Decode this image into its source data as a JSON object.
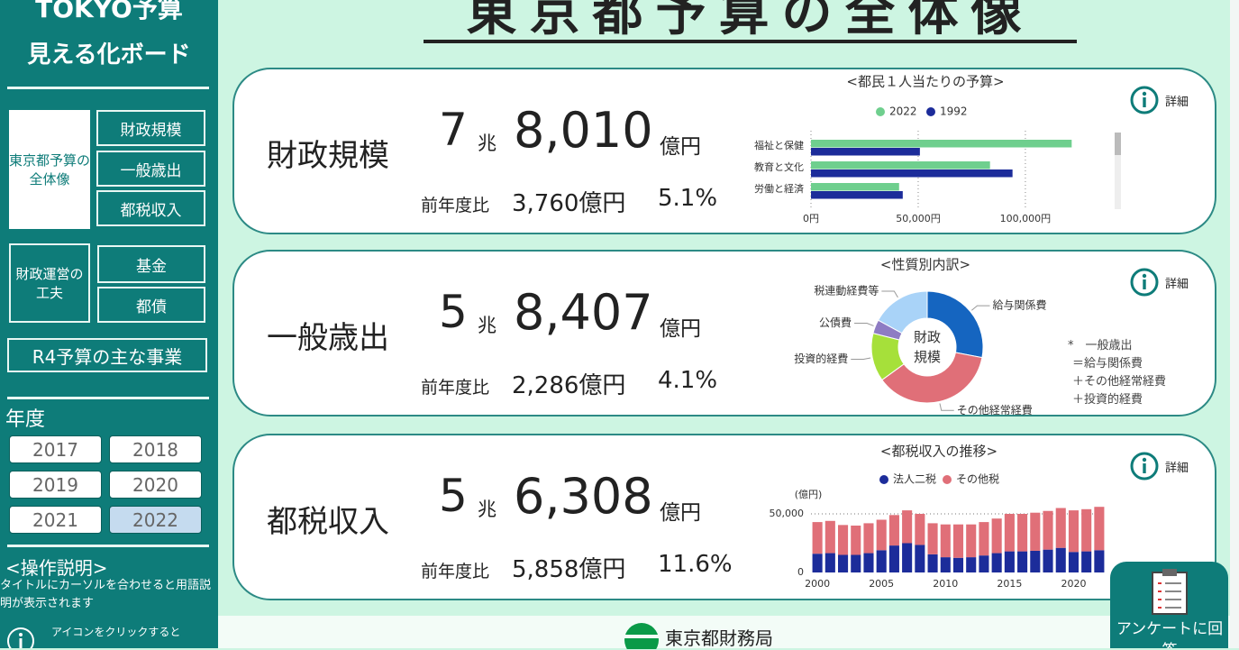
{
  "sidebar": {
    "title": "TOKYO予算",
    "subtitle": "見える化ボード",
    "nav": [
      {
        "label": "東京都予算の全体像",
        "items": [
          "財政規模",
          "一般歳出",
          "都税収入"
        ]
      },
      {
        "label": "財政運営の工夫",
        "items": [
          "基金",
          "都債"
        ]
      }
    ],
    "feature_button": "R4予算の主な事業",
    "year_label": "年度",
    "years": [
      "2017",
      "2018",
      "2019",
      "2020",
      "2021",
      "2022"
    ],
    "selected_year": "2022",
    "help_title": "<操作説明>",
    "help_text": "タイトルにカーソルを合わせると用語説明が表示されます",
    "icon_help": "アイコンをクリックすると"
  },
  "header": {
    "title": "東京都予算の全体像"
  },
  "cards": [
    {
      "label": "財政規模",
      "trillion": "7",
      "trillion_unit": "兆",
      "hundred_million": "8,010",
      "unit": "億円",
      "comparison_label": "前年度比",
      "change": "3,760億円",
      "change_pct": "5.1%",
      "detail": "詳細"
    },
    {
      "label": "一般歳出",
      "trillion": "5",
      "trillion_unit": "兆",
      "hundred_million": "8,407",
      "unit": "億円",
      "comparison_label": "前年度比",
      "change": "2,286億円",
      "change_pct": "4.1%",
      "detail": "詳細"
    },
    {
      "label": "都税収入",
      "trillion": "5",
      "trillion_unit": "兆",
      "hundred_million": "6,308",
      "unit": "億円",
      "comparison_label": "前年度比",
      "change": "5,858億円",
      "change_pct": "11.6%",
      "detail": "詳細"
    }
  ],
  "chart_data": [
    {
      "type": "bar",
      "orientation": "horizontal",
      "title": "<都民１人当たりの予算>",
      "categories": [
        "福祉と保健",
        "教育と文化",
        "労働と経済"
      ],
      "series": [
        {
          "name": "2022",
          "color": "#6fcf8e",
          "values": [
            121600,
            83500,
            41100
          ]
        },
        {
          "name": "1992",
          "color": "#1c2c9a",
          "values": [
            50800,
            94000,
            42800
          ]
        }
      ],
      "xlim": [
        0,
        145000
      ],
      "xticks": [
        {
          "value": 0,
          "label": "0円"
        },
        {
          "value": 50000,
          "label": "50,000円"
        },
        {
          "value": 100000,
          "label": "100,000円"
        }
      ],
      "grid": true
    },
    {
      "type": "donut",
      "title": "<性質別内訳>",
      "center_label": "財政規模",
      "categories": [
        "給与関係費",
        "その他経常経費",
        "投資的経費",
        "公債費",
        "税連動経費等"
      ],
      "values": [
        28,
        37,
        14,
        4,
        17
      ],
      "colors": [
        "#1565c0",
        "#e06f78",
        "#a6e03a",
        "#8e7cc3",
        "#a9d3f8"
      ],
      "note": [
        "*　一般歳出",
        "＝給与関係費",
        "＋その他経常経費",
        "＋投資的経費"
      ]
    },
    {
      "type": "bar",
      "stacked": true,
      "title": "<都税収入の推移>",
      "y_label": "(億円)",
      "x": [
        2000,
        2001,
        2002,
        2003,
        2004,
        2005,
        2006,
        2007,
        2008,
        2009,
        2010,
        2011,
        2012,
        2013,
        2014,
        2015,
        2016,
        2017,
        2018,
        2019,
        2020,
        2021,
        2022
      ],
      "series": [
        {
          "name": "法人二税",
          "color": "#1c2c9a",
          "values": [
            16000,
            16500,
            15000,
            15000,
            16500,
            19000,
            23000,
            25000,
            23500,
            15500,
            13000,
            12500,
            13000,
            14500,
            16500,
            18000,
            18000,
            18500,
            19500,
            21000,
            17500,
            18000,
            19000
          ]
        },
        {
          "name": "その他税",
          "color": "#e06f78",
          "values": [
            27000,
            27500,
            25500,
            25000,
            25500,
            26000,
            26000,
            28000,
            26500,
            26500,
            28000,
            28500,
            28000,
            28500,
            29500,
            32000,
            32000,
            32500,
            33000,
            34000,
            35500,
            36000,
            37000
          ]
        }
      ],
      "ylim": [
        0,
        60000
      ],
      "yticks": [
        0,
        {
          "value": 50000,
          "label": "50,000"
        }
      ],
      "xticks": [
        2000,
        2005,
        2010,
        2015,
        2020
      ],
      "grid": true
    }
  ],
  "footer": {
    "org": "東京都財務局",
    "survey": "アンケートに回答"
  }
}
